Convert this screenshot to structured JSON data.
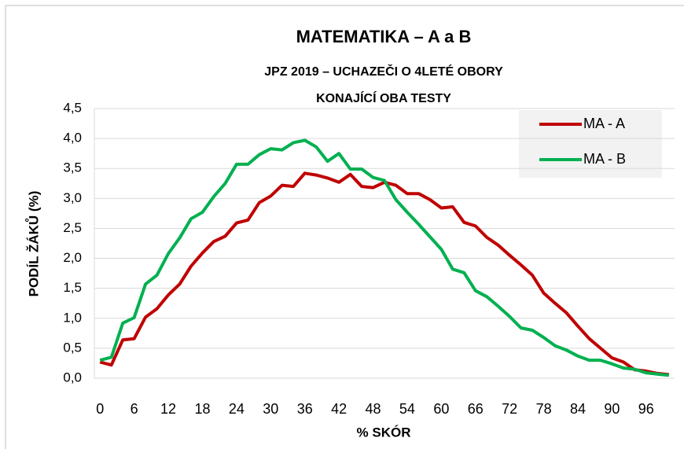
{
  "chart_data": {
    "type": "line",
    "title": "MATEMATIKA –  A a B",
    "subtitle": [
      "JPZ 2019 – UCHAZEČI O 4LETÉ OBORY",
      "KONAJÍCÍ OBA TESTY"
    ],
    "xlabel": "% SKÓR",
    "ylabel": "PODÍL ŽÁKŮ (%)",
    "categories": [
      "0",
      null,
      null,
      "6",
      null,
      null,
      "12",
      null,
      null,
      "18",
      null,
      null,
      "24",
      null,
      null,
      "30",
      null,
      null,
      "36",
      null,
      null,
      "42",
      null,
      null,
      "48",
      null,
      null,
      "54",
      null,
      null,
      "60",
      null,
      null,
      "66",
      null,
      null,
      "72",
      null,
      null,
      "78",
      null,
      null,
      "84",
      null,
      null,
      "90",
      null,
      null,
      "96",
      null,
      null
    ],
    "series": [
      {
        "name": "MA - A",
        "color": "#c00000",
        "values": [
          0.27,
          0.22,
          0.64,
          0.66,
          1.02,
          1.16,
          1.39,
          1.57,
          1.87,
          2.09,
          2.28,
          2.37,
          2.59,
          2.64,
          2.93,
          3.04,
          3.22,
          3.2,
          3.42,
          3.39,
          3.34,
          3.27,
          3.4,
          3.2,
          3.18,
          3.27,
          3.22,
          3.08,
          3.08,
          2.98,
          2.84,
          2.86,
          2.6,
          2.54,
          2.35,
          2.22,
          2.05,
          1.89,
          1.72,
          1.42,
          1.25,
          1.09,
          0.87,
          0.66,
          0.5,
          0.34,
          0.27,
          0.14,
          0.12,
          0.08,
          0.06
        ]
      },
      {
        "name": "MA - B",
        "color": "#00b050",
        "values": [
          0.3,
          0.35,
          0.92,
          1.01,
          1.57,
          1.72,
          2.08,
          2.34,
          2.66,
          2.77,
          3.03,
          3.25,
          3.57,
          3.57,
          3.73,
          3.83,
          3.81,
          3.93,
          3.97,
          3.86,
          3.62,
          3.75,
          3.49,
          3.49,
          3.35,
          3.3,
          2.98,
          2.77,
          2.57,
          2.36,
          2.15,
          1.82,
          1.76,
          1.46,
          1.36,
          1.2,
          1.03,
          0.84,
          0.8,
          0.68,
          0.54,
          0.47,
          0.37,
          0.3,
          0.3,
          0.24,
          0.17,
          0.15,
          0.09,
          0.07,
          0.05
        ]
      }
    ],
    "ylim": [
      0,
      4.5
    ],
    "yticks": [
      {
        "value": 0,
        "label": "0,0"
      },
      {
        "value": 0.5,
        "label": "0,5"
      },
      {
        "value": 1,
        "label": "1,0"
      },
      {
        "value": 1.5,
        "label": "1,5"
      },
      {
        "value": 2,
        "label": "2,0"
      },
      {
        "value": 2.5,
        "label": "2,5"
      },
      {
        "value": 3,
        "label": "3,0"
      },
      {
        "value": 3.5,
        "label": "3,5"
      },
      {
        "value": 4,
        "label": "4,0"
      },
      {
        "value": 4.5,
        "label": "4,5"
      }
    ],
    "grid": true,
    "legend": "top-right"
  }
}
